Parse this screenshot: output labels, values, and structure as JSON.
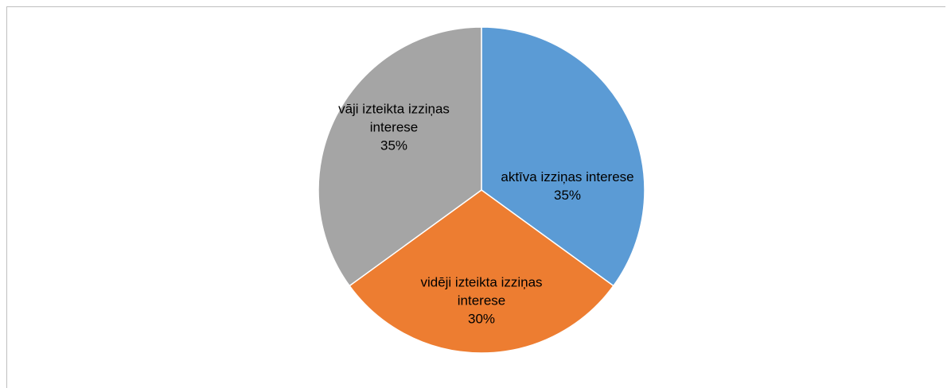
{
  "chart_data": {
    "type": "pie",
    "categories": [
      "aktīva izziņas interese",
      "vidēji izteikta izziņas interese",
      "vāji izteikta izziņas interese"
    ],
    "values": [
      35,
      30,
      35
    ],
    "value_labels": [
      "35%",
      "30%",
      "35%"
    ],
    "colors": [
      "#5b9bd5",
      "#ed7d31",
      "#a5a5a5"
    ]
  }
}
